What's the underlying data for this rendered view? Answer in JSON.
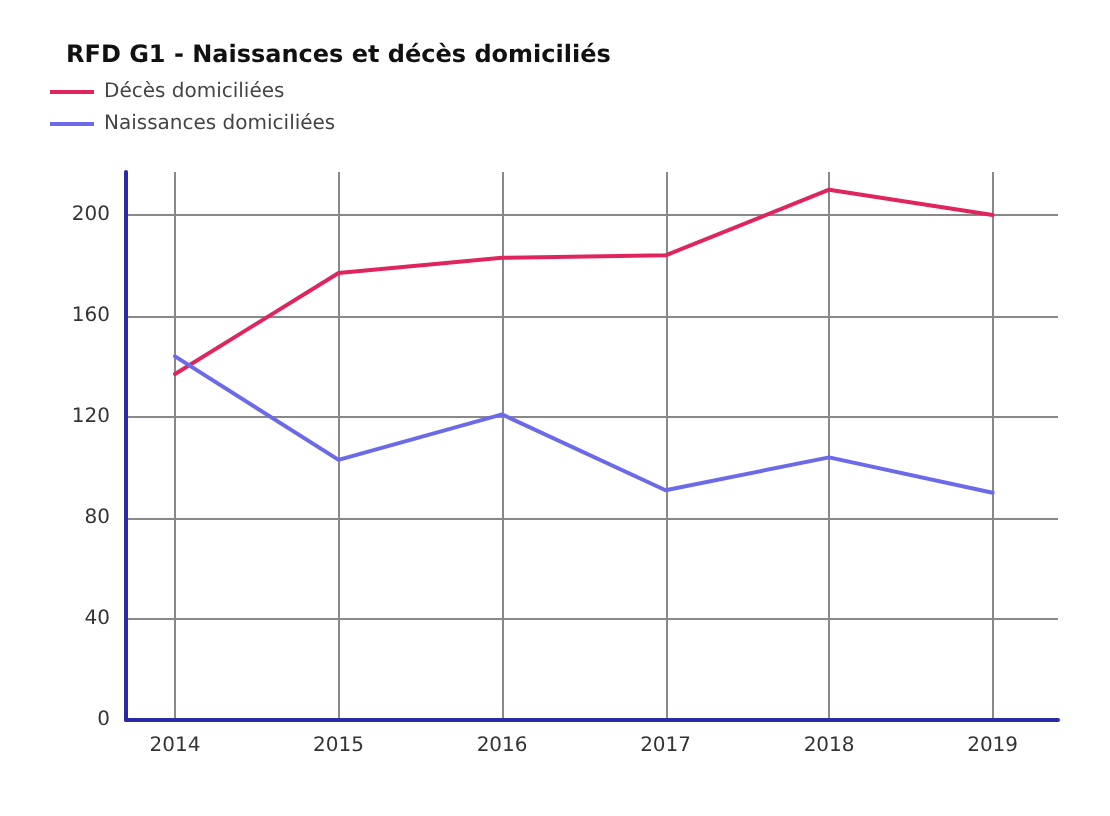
{
  "chart_data": {
    "type": "line",
    "title": "RFD G1 - Naissances et décès domiciliés",
    "x": [
      2014,
      2015,
      2016,
      2017,
      2018,
      2019
    ],
    "xlim": [
      2013.7,
      2019.4
    ],
    "xticks": [
      2014,
      2015,
      2016,
      2017,
      2018,
      2019
    ],
    "ylim": [
      0,
      217
    ],
    "yticks": [
      0,
      40,
      80,
      120,
      160,
      200
    ],
    "grid": true,
    "legend": "top left",
    "marker": "none",
    "line_style": "solid",
    "series": [
      {
        "name": "Décès domiciliées",
        "color": "#e0245e",
        "values": [
          137,
          177,
          183,
          184,
          210,
          200
        ]
      },
      {
        "name": "Naissances domiciliées",
        "color": "#6b6bea",
        "values": [
          144,
          103,
          121,
          91,
          104,
          90
        ]
      }
    ]
  }
}
